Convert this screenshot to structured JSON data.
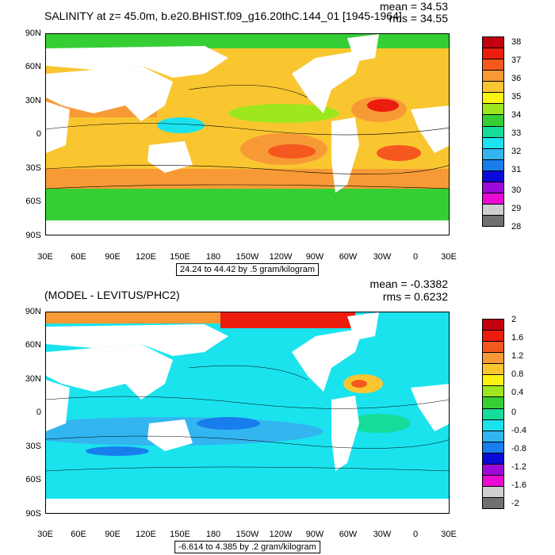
{
  "top": {
    "title": "SALINITY at z=  45.0m, b.e20.BHIST.f09_g16.20thC.144_01 [1945-1964]",
    "mean": "mean = 34.53",
    "rms": "rms = 34.55",
    "range_label": "24.24 to 44.42 by .5 gram/kilogram",
    "lat_labels": [
      "90N",
      "60N",
      "30N",
      "0",
      "30S",
      "60S",
      "90S"
    ],
    "lon_labels": [
      "30E",
      "60E",
      "90E",
      "120E",
      "150E",
      "180",
      "150W",
      "120W",
      "90W",
      "60W",
      "30W",
      "0",
      "30E"
    ],
    "colorbar_labels": [
      "38",
      "37",
      "36",
      "35",
      "34",
      "33",
      "32",
      "31",
      "30",
      "29",
      "28"
    ],
    "colorbar_colors": [
      "#c4000f",
      "#ec1c0e",
      "#f5581e",
      "#f79a36",
      "#f9c630",
      "#fbf312",
      "#9ee71e",
      "#35cf35",
      "#15dc9a",
      "#1ae3ee",
      "#33b5f0",
      "#187ded",
      "#0a0ad8",
      "#9b0ad8",
      "#ea0ad3",
      "#cfcfcf",
      "#707070"
    ]
  },
  "bottom": {
    "title": "(MODEL - LEVITUS/PHC2)",
    "mean": "mean = -0.3382",
    "rms": "rms = 0.6232",
    "range_label": "-6.614 to 4.385 by .2 gram/kilogram",
    "lat_labels": [
      "90N",
      "60N",
      "30N",
      "0",
      "30S",
      "60S",
      "90S"
    ],
    "lon_labels": [
      "30E",
      "60E",
      "90E",
      "120E",
      "150E",
      "180",
      "150W",
      "120W",
      "90W",
      "60W",
      "30W",
      "0",
      "30E"
    ],
    "colorbar_labels": [
      "2",
      "1.6",
      "1.2",
      "0.8",
      "0.4",
      "0",
      "-0.4",
      "-0.8",
      "-1.2",
      "-1.6",
      "-2"
    ],
    "colorbar_colors": [
      "#c4000f",
      "#ec1c0e",
      "#f5581e",
      "#f79a36",
      "#f9c630",
      "#fbf312",
      "#9ee71e",
      "#35cf35",
      "#15dc9a",
      "#1ae3ee",
      "#33b5f0",
      "#187ded",
      "#0a0ad8",
      "#9b0ad8",
      "#ea0ad3",
      "#cfcfcf",
      "#707070"
    ]
  }
}
